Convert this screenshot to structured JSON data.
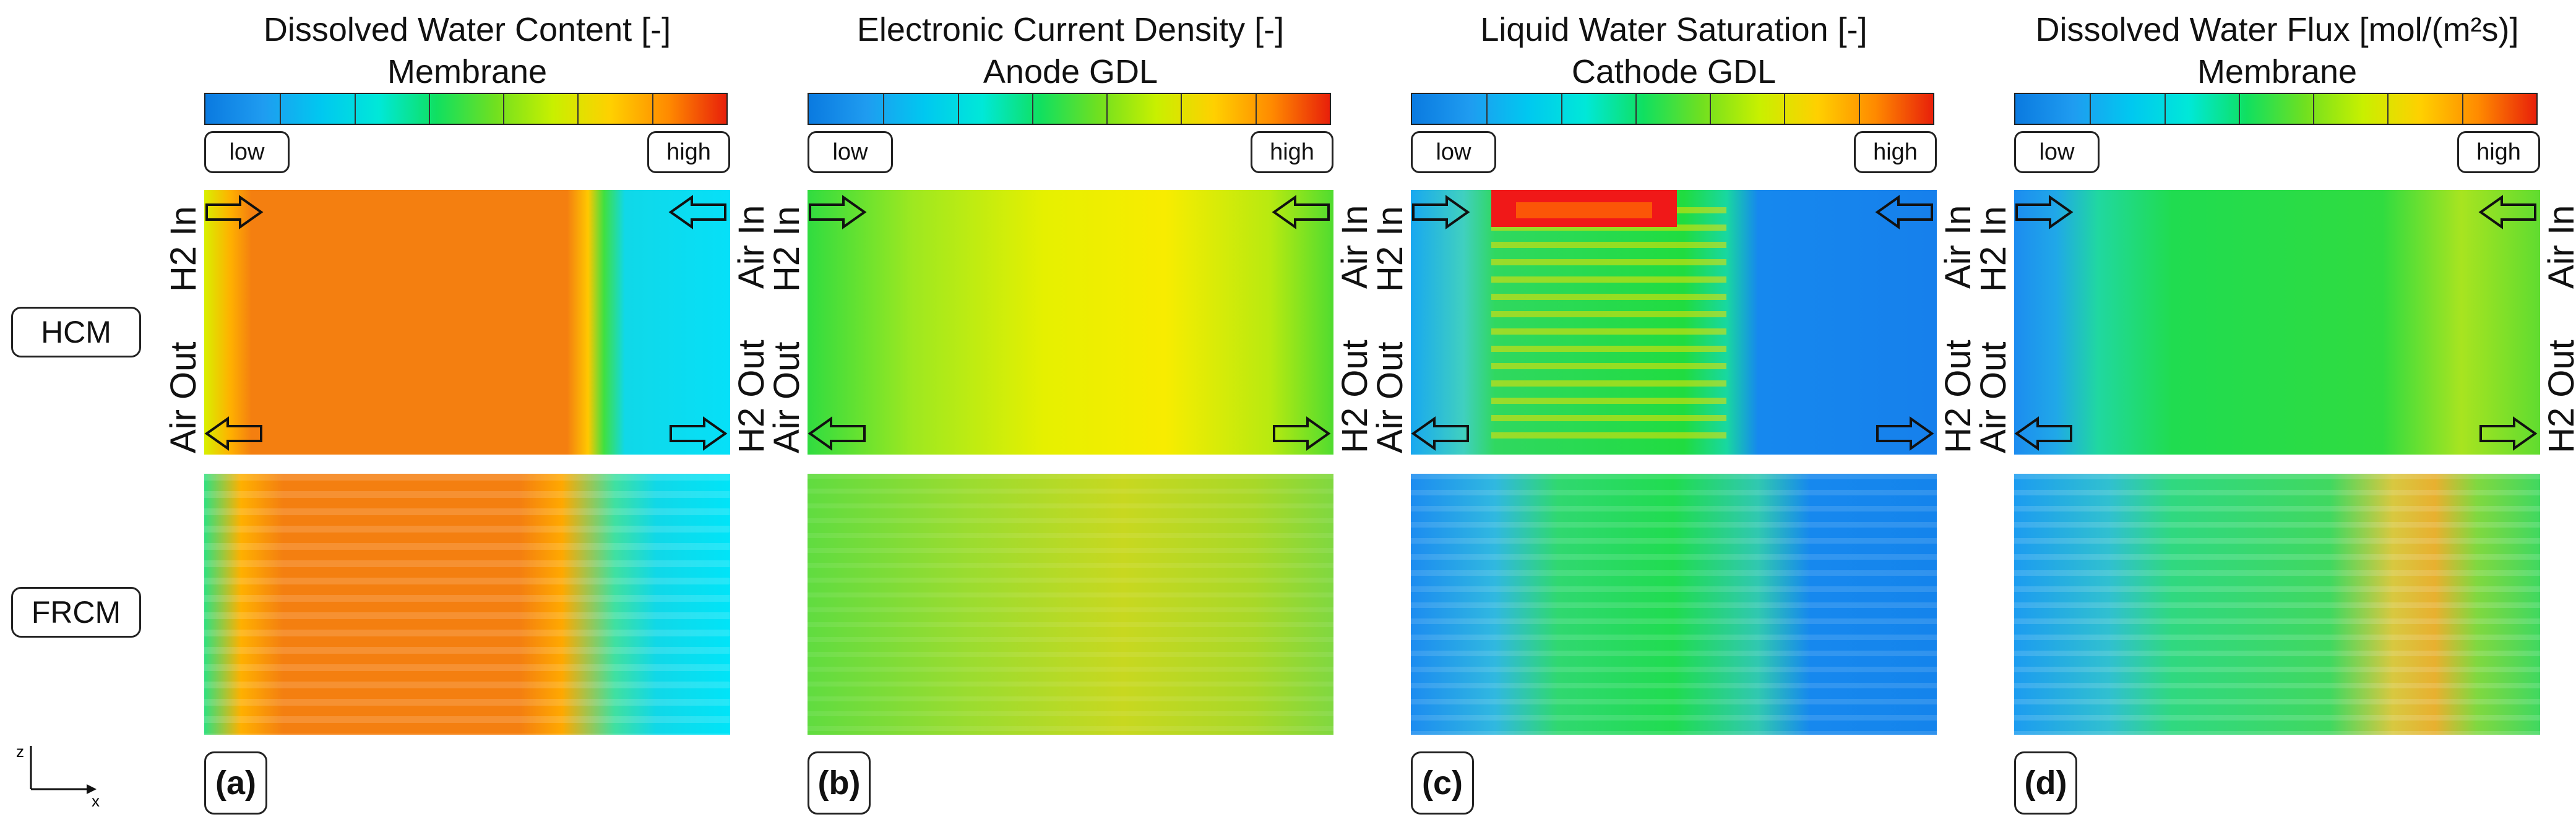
{
  "figure": {
    "rows": [
      "HCM",
      "FRCM"
    ],
    "axes": {
      "vertical": "z",
      "horizontal": "x"
    },
    "colorbar_low": "low",
    "colorbar_high": "high",
    "colormap": [
      "#0a7ae0",
      "#1f9cf0",
      "#00c8f0",
      "#00e8d8",
      "#10e060",
      "#70e020",
      "#c8f000",
      "#ffd000",
      "#ff8a00",
      "#e8200a"
    ],
    "ports": {
      "left_top": "H2 In",
      "left_bottom": "Air Out",
      "right_top": "Air In",
      "right_bottom": "H2 Out"
    }
  },
  "panels": [
    {
      "letter": "(a)",
      "quantity": "Dissolved Water Content [-]",
      "region": "Membrane"
    },
    {
      "letter": "(b)",
      "quantity": "Electronic Current Density [-]",
      "region": "Anode GDL"
    },
    {
      "letter": "(c)",
      "quantity": "Liquid Water Saturation [-]",
      "region": "Cathode GDL"
    },
    {
      "letter": "(d)",
      "quantity": "Dissolved Water Flux [mol/(m²s)]",
      "region": "Membrane"
    }
  ]
}
